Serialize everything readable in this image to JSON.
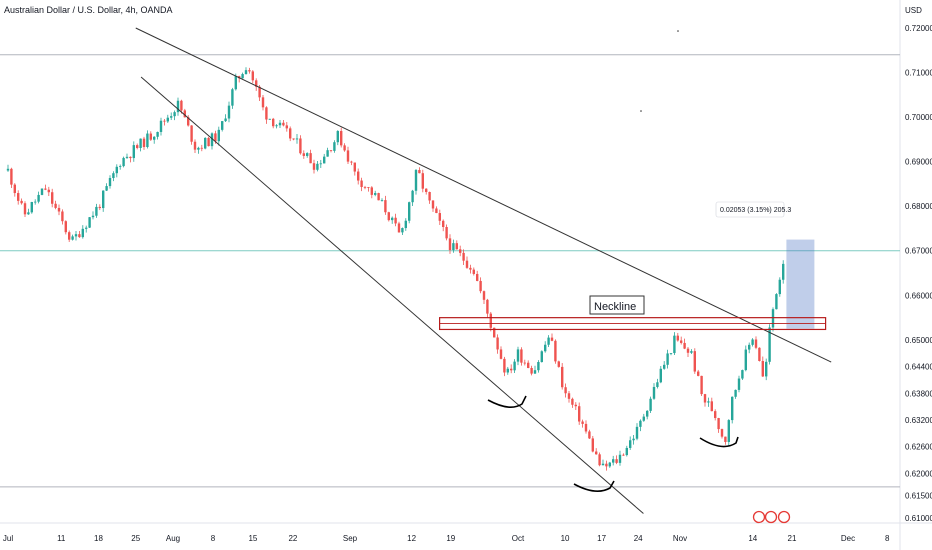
{
  "header": {
    "title": "Australian Dollar / U.S. Dollar, 4h, OANDA"
  },
  "price_axis": {
    "currency": "USD",
    "labels": [
      "0.72000",
      "0.71000",
      "0.70000",
      "0.69000",
      "0.68000",
      "0.67000",
      "0.66000",
      "0.65000",
      "0.64400",
      "0.63800",
      "0.63200",
      "0.62600",
      "0.62000",
      "0.61500",
      "0.61000"
    ]
  },
  "time_axis": {
    "labels": [
      "Jul",
      "11",
      "18",
      "25",
      "Aug",
      "8",
      "15",
      "22",
      "Sep",
      "12",
      "19",
      "Oct",
      "10",
      "17",
      "24",
      "Nov",
      "14",
      "21",
      "Dec",
      "8"
    ]
  },
  "annotations": {
    "neckline_label": "Neckline",
    "measure_label": "0.02053 (3.15%) 205.3"
  },
  "colors": {
    "up": "#26a69a",
    "down": "#ef5350",
    "trendline": "#333333",
    "neckline": "#b71c1c",
    "measure_fill": "#4a72c4",
    "hline_gray": "#b2b5be",
    "hline_teal": "#7ecbc2"
  },
  "chart_data": {
    "type": "candlestick",
    "title": "Australian Dollar / U.S. Dollar, 4h, OANDA",
    "ylabel": "USD",
    "ylim": [
      0.6085,
      0.7225
    ],
    "close_path": [
      [
        "Jul 1",
        0.688
      ],
      [
        "Jul 4",
        0.678
      ],
      [
        "Jul 8",
        0.684
      ],
      [
        "Jul 13",
        0.672
      ],
      [
        "Jul 18",
        0.68
      ],
      [
        "Jul 22",
        0.69
      ],
      [
        "Jul 28",
        0.696
      ],
      [
        "Aug 2",
        0.703
      ],
      [
        "Aug 5",
        0.693
      ],
      [
        "Aug 9",
        0.696
      ],
      [
        "Aug 12",
        0.708
      ],
      [
        "Aug 14",
        0.712
      ],
      [
        "Aug 17",
        0.701
      ],
      [
        "Aug 22",
        0.695
      ],
      [
        "Aug 26",
        0.689
      ],
      [
        "Aug 30",
        0.696
      ],
      [
        "Sep 2",
        0.687
      ],
      [
        "Sep 7",
        0.68
      ],
      [
        "Sep 10",
        0.673
      ],
      [
        "Sep 13",
        0.688
      ],
      [
        "Sep 15",
        0.681
      ],
      [
        "Sep 19",
        0.671
      ],
      [
        "Sep 23",
        0.666
      ],
      [
        "Sep 26",
        0.654
      ],
      [
        "Sep 29",
        0.642
      ],
      [
        "Oct 1",
        0.647
      ],
      [
        "Oct 4",
        0.643
      ],
      [
        "Oct 7",
        0.651
      ],
      [
        "Oct 10",
        0.638
      ],
      [
        "Oct 13",
        0.632
      ],
      [
        "Oct 17",
        0.621
      ],
      [
        "Oct 20",
        0.623
      ],
      [
        "Oct 24",
        0.63
      ],
      [
        "Oct 28",
        0.642
      ],
      [
        "Oct 31",
        0.65
      ],
      [
        "Nov 3",
        0.647
      ],
      [
        "Nov 5",
        0.637
      ],
      [
        "Nov 7",
        0.634
      ],
      [
        "Nov 9",
        0.627
      ],
      [
        "Nov 10",
        0.635
      ],
      [
        "Nov 12",
        0.644
      ],
      [
        "Nov 14",
        0.651
      ],
      [
        "Nov 15",
        0.647
      ],
      [
        "Nov 16",
        0.64
      ],
      [
        "Nov 17",
        0.652
      ],
      [
        "Nov 18",
        0.66
      ],
      [
        "Nov 19",
        0.665
      ],
      [
        "Nov 20",
        0.672
      ]
    ],
    "horizontal_levels": [
      {
        "price": 0.714,
        "color": "gray"
      },
      {
        "price": 0.67,
        "color": "teal"
      },
      {
        "price": 0.617,
        "color": "gray"
      }
    ],
    "trendlines": [
      {
        "from": [
          "Jul 25",
          0.72
        ],
        "to": [
          "Nov 28",
          0.645
        ]
      },
      {
        "from": [
          "Jul 26",
          0.709
        ],
        "to": [
          "Oct 25",
          0.611
        ]
      }
    ],
    "neckline_zone": {
      "from": "Sep 17",
      "to": "Nov 27",
      "top": 0.6543,
      "bottom": 0.653
    },
    "measure_box": {
      "from": "Nov 20",
      "to": "Nov 25",
      "top": 0.6725,
      "bottom": 0.6525,
      "change": 0.02053,
      "change_pct": 3.15,
      "pips": 205.3
    }
  }
}
